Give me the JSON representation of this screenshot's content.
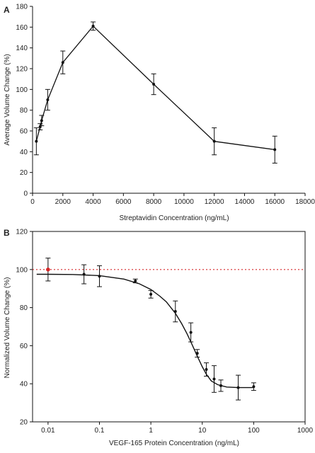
{
  "colors": {
    "ink": "#111111",
    "reference_line": "#d62728",
    "reference_point": "#d62728"
  },
  "chart_data": [
    {
      "panel": "A",
      "type": "line",
      "xlabel": "Streptavidin Concentration (ng/mL)",
      "ylabel": "Average Volume Change (%)",
      "xlim": [
        0,
        18000
      ],
      "ylim": [
        0,
        180
      ],
      "x_ticks": [
        0,
        2000,
        4000,
        6000,
        8000,
        10000,
        12000,
        14000,
        16000,
        18000
      ],
      "x_tick_labels": [
        "0",
        "2000",
        "4000",
        "6000",
        "8000",
        "10000",
        "12000",
        "14000",
        "16000",
        "18000"
      ],
      "y_ticks": [
        0,
        20,
        40,
        60,
        80,
        100,
        120,
        140,
        160,
        180
      ],
      "y_tick_labels": [
        "0",
        "20",
        "40",
        "60",
        "80",
        "100",
        "120",
        "140",
        "160",
        "180"
      ],
      "grid": false,
      "series": [
        {
          "x": [
            250,
            500,
            600,
            1000,
            2000,
            4000,
            8000,
            12000,
            16000
          ],
          "y": [
            50,
            64,
            70,
            90,
            126,
            161,
            105,
            50,
            42
          ],
          "err": [
            13,
            3,
            5,
            10,
            11,
            4,
            10,
            13,
            13
          ]
        }
      ]
    },
    {
      "panel": "B",
      "type": "scatter",
      "xscale": "log",
      "xlabel": "VEGF-165 Protein Concentration (ng/mL)",
      "ylabel": "Normalized Volume Change (%)",
      "xlim": [
        0.005,
        1000
      ],
      "ylim": [
        20,
        120
      ],
      "x_ticks": [
        0.01,
        0.1,
        1,
        10,
        100,
        1000
      ],
      "x_tick_labels": [
        "0.01",
        "0.1",
        "1",
        "10",
        "100",
        "1000"
      ],
      "y_ticks": [
        20,
        40,
        60,
        80,
        100,
        120
      ],
      "y_tick_labels": [
        "20",
        "40",
        "60",
        "80",
        "100",
        "120"
      ],
      "grid": false,
      "reference_line_y": 100,
      "series": [
        {
          "x": [
            0.01,
            0.05,
            0.1,
            0.5,
            1,
            3,
            6,
            8,
            12,
            17,
            23,
            50,
            100
          ],
          "y": [
            100,
            97.5,
            96.5,
            94,
            87,
            78,
            67,
            56,
            47.5,
            42.5,
            39,
            38,
            38.5
          ],
          "err": [
            6,
            5,
            5.5,
            1,
            2,
            5.5,
            5,
            2,
            3.5,
            7,
            3,
            6.5,
            2
          ],
          "highlight_index": 0
        }
      ],
      "fit_curve": {
        "x": [
          0.006,
          0.01,
          0.03,
          0.1,
          0.3,
          0.6,
          1,
          1.5,
          2,
          3,
          4,
          5,
          6,
          7,
          8,
          10,
          12,
          15,
          20,
          30,
          50,
          100
        ],
        "y": [
          97.5,
          97.5,
          97.4,
          96.8,
          95,
          92.5,
          89.5,
          86,
          83,
          77,
          71.5,
          66.5,
          62,
          58,
          54.5,
          49,
          45,
          41.5,
          39.5,
          38.3,
          38,
          38
        ]
      }
    }
  ]
}
